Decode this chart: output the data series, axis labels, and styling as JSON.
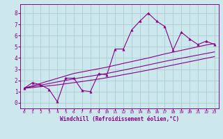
{
  "xlabel": "Windchill (Refroidissement éolien,°C)",
  "bg_color": "#cce8ed",
  "grid_color": "#aacdd4",
  "line_color": "#880088",
  "x_data": [
    0,
    1,
    2,
    3,
    4,
    5,
    6,
    7,
    8,
    9,
    10,
    11,
    12,
    13,
    14,
    15,
    16,
    17,
    18,
    19,
    20,
    21,
    22,
    23
  ],
  "y_zigzag": [
    1.3,
    1.8,
    1.6,
    1.2,
    0.1,
    2.2,
    2.2,
    1.1,
    1.0,
    2.6,
    2.5,
    4.8,
    4.8,
    6.5,
    7.3,
    8.0,
    7.3,
    6.8,
    4.7,
    6.3,
    5.7,
    5.2,
    5.5,
    5.2
  ],
  "y_line1": [
    1.3,
    1.52,
    1.74,
    1.96,
    2.18,
    2.4,
    2.62,
    2.76,
    2.9,
    3.04,
    3.18,
    3.35,
    3.52,
    3.68,
    3.84,
    4.0,
    4.18,
    4.36,
    4.52,
    4.68,
    4.84,
    5.0,
    5.16,
    5.28
  ],
  "y_line2": [
    1.3,
    1.44,
    1.58,
    1.72,
    1.86,
    2.0,
    2.14,
    2.26,
    2.38,
    2.5,
    2.62,
    2.77,
    2.92,
    3.07,
    3.22,
    3.38,
    3.54,
    3.7,
    3.84,
    3.98,
    4.12,
    4.26,
    4.4,
    4.54
  ],
  "y_line3": [
    1.3,
    1.36,
    1.44,
    1.52,
    1.6,
    1.7,
    1.8,
    1.9,
    2.01,
    2.12,
    2.24,
    2.37,
    2.51,
    2.64,
    2.78,
    2.92,
    3.07,
    3.22,
    3.37,
    3.52,
    3.67,
    3.82,
    3.97,
    4.12
  ],
  "xlim": [
    -0.5,
    23.5
  ],
  "ylim": [
    -0.5,
    8.8
  ],
  "yticks": [
    0,
    1,
    2,
    3,
    4,
    5,
    6,
    7,
    8
  ],
  "xticks": [
    0,
    1,
    2,
    3,
    4,
    5,
    6,
    7,
    8,
    9,
    10,
    11,
    12,
    13,
    14,
    15,
    16,
    17,
    18,
    19,
    20,
    21,
    22,
    23
  ]
}
